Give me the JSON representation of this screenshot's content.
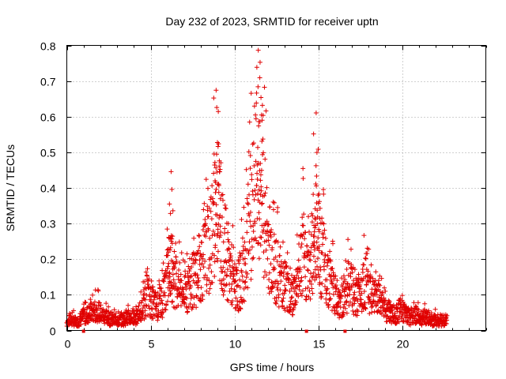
{
  "chart_data": {
    "type": "scatter",
    "title": "Day 232 of 2023, SRMTID for receiver uptn",
    "xlabel": "GPS time / hours",
    "ylabel": "SRMTID / TECUs",
    "xlim": [
      0,
      25
    ],
    "ylim": [
      0,
      0.8
    ],
    "xticks": [
      0,
      5,
      10,
      15,
      20
    ],
    "yticks": [
      0,
      0.1,
      0.2,
      0.3,
      0.4,
      0.5,
      0.6,
      0.7,
      0.8
    ],
    "grid": true,
    "marker": "plus",
    "color": "#e00000",
    "data_gaps_hours": [
      1.0,
      14.3,
      16.6
    ],
    "series": [
      {
        "name": "SRMTID",
        "envelope_note": "approximate trace values read from the plot (hour, SRMTID)",
        "points": [
          [
            0.0,
            0.03
          ],
          [
            0.3,
            0.04
          ],
          [
            0.6,
            0.03
          ],
          [
            0.9,
            0.05
          ],
          [
            1.2,
            0.06
          ],
          [
            1.5,
            0.07
          ],
          [
            1.8,
            0.08
          ],
          [
            2.1,
            0.06
          ],
          [
            2.4,
            0.05
          ],
          [
            2.7,
            0.04
          ],
          [
            3.0,
            0.04
          ],
          [
            3.3,
            0.04
          ],
          [
            3.6,
            0.05
          ],
          [
            3.9,
            0.05
          ],
          [
            4.2,
            0.05
          ],
          [
            4.5,
            0.08
          ],
          [
            4.8,
            0.14
          ],
          [
            5.1,
            0.11
          ],
          [
            5.4,
            0.09
          ],
          [
            5.7,
            0.12
          ],
          [
            6.0,
            0.2
          ],
          [
            6.2,
            0.3
          ],
          [
            6.4,
            0.2
          ],
          [
            6.7,
            0.17
          ],
          [
            7.0,
            0.14
          ],
          [
            7.3,
            0.17
          ],
          [
            7.6,
            0.2
          ],
          [
            7.9,
            0.24
          ],
          [
            8.2,
            0.28
          ],
          [
            8.5,
            0.3
          ],
          [
            8.8,
            0.45
          ],
          [
            9.0,
            0.6
          ],
          [
            9.2,
            0.35
          ],
          [
            9.5,
            0.3
          ],
          [
            9.8,
            0.22
          ],
          [
            10.1,
            0.15
          ],
          [
            10.4,
            0.2
          ],
          [
            10.7,
            0.3
          ],
          [
            11.0,
            0.45
          ],
          [
            11.3,
            0.58
          ],
          [
            11.5,
            0.65
          ],
          [
            11.7,
            0.5
          ],
          [
            12.0,
            0.35
          ],
          [
            12.3,
            0.28
          ],
          [
            12.6,
            0.22
          ],
          [
            12.9,
            0.2
          ],
          [
            13.2,
            0.16
          ],
          [
            13.5,
            0.13
          ],
          [
            13.8,
            0.2
          ],
          [
            14.1,
            0.3
          ],
          [
            14.4,
            0.22
          ],
          [
            14.7,
            0.35
          ],
          [
            14.9,
            0.45
          ],
          [
            15.1,
            0.3
          ],
          [
            15.4,
            0.25
          ],
          [
            15.7,
            0.2
          ],
          [
            16.0,
            0.14
          ],
          [
            16.3,
            0.09
          ],
          [
            16.6,
            0.15
          ],
          [
            16.9,
            0.18
          ],
          [
            17.2,
            0.12
          ],
          [
            17.5,
            0.16
          ],
          [
            17.8,
            0.2
          ],
          [
            18.1,
            0.14
          ],
          [
            18.4,
            0.12
          ],
          [
            18.7,
            0.11
          ],
          [
            19.0,
            0.08
          ],
          [
            19.3,
            0.07
          ],
          [
            19.6,
            0.06
          ],
          [
            19.9,
            0.08
          ],
          [
            20.2,
            0.07
          ],
          [
            20.5,
            0.05
          ],
          [
            20.8,
            0.06
          ],
          [
            21.1,
            0.05
          ],
          [
            21.4,
            0.05
          ],
          [
            21.7,
            0.04
          ],
          [
            22.0,
            0.04
          ],
          [
            22.3,
            0.04
          ],
          [
            22.7,
            0.04
          ]
        ]
      }
    ]
  }
}
